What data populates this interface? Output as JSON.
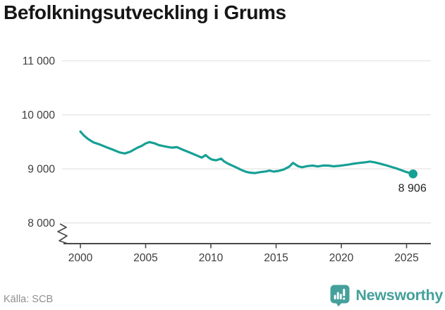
{
  "title": "Befolkningsutveckling i Grums",
  "source": "Källa: SCB",
  "brand": {
    "name": "Newsworthy"
  },
  "colors": {
    "line": "#17A095",
    "grid": "#E4E4E4",
    "axis": "#4A4A4A",
    "axis_text": "#3C3C3C",
    "title_text": "#161616",
    "source_text": "#8F8F8F",
    "annotation_text": "#1F1F1F",
    "brand_teal": "#44A09B"
  },
  "chart_data": {
    "type": "line",
    "title": "Befolkningsutveckling i Grums",
    "xlabel": "",
    "ylabel": "",
    "grid": "horizontal",
    "legend": "none",
    "axis_break_at_bottom": true,
    "x_ticks": [
      2000,
      2005,
      2010,
      2015,
      2020,
      2025
    ],
    "y_ticks": [
      8000,
      9000,
      10000,
      11000
    ],
    "y_tick_labels": [
      "8 000",
      "9 000",
      "10 000",
      "11 000"
    ],
    "xlim": [
      1998.6,
      2027.3
    ],
    "ylim": [
      8000,
      11000
    ],
    "series": [
      {
        "name": "Befolkning i Grums",
        "end_label": "8 906",
        "end_value": 8906,
        "points": [
          [
            2000.0,
            9690
          ],
          [
            2000.3,
            9610
          ],
          [
            2000.6,
            9550
          ],
          [
            2001.0,
            9490
          ],
          [
            2001.5,
            9450
          ],
          [
            2002.0,
            9400
          ],
          [
            2002.5,
            9355
          ],
          [
            2003.0,
            9305
          ],
          [
            2003.4,
            9285
          ],
          [
            2003.8,
            9315
          ],
          [
            2004.1,
            9355
          ],
          [
            2004.4,
            9395
          ],
          [
            2004.7,
            9425
          ],
          [
            2005.0,
            9470
          ],
          [
            2005.3,
            9495
          ],
          [
            2005.7,
            9470
          ],
          [
            2006.0,
            9440
          ],
          [
            2006.5,
            9415
          ],
          [
            2007.0,
            9392
          ],
          [
            2007.4,
            9402
          ],
          [
            2007.8,
            9360
          ],
          [
            2008.1,
            9330
          ],
          [
            2008.5,
            9290
          ],
          [
            2009.0,
            9240
          ],
          [
            2009.3,
            9210
          ],
          [
            2009.6,
            9255
          ],
          [
            2009.9,
            9195
          ],
          [
            2010.1,
            9170
          ],
          [
            2010.4,
            9158
          ],
          [
            2010.8,
            9188
          ],
          [
            2011.0,
            9140
          ],
          [
            2011.3,
            9098
          ],
          [
            2011.6,
            9065
          ],
          [
            2012.0,
            9020
          ],
          [
            2012.3,
            8985
          ],
          [
            2012.7,
            8945
          ],
          [
            2013.0,
            8930
          ],
          [
            2013.4,
            8922
          ],
          [
            2013.8,
            8940
          ],
          [
            2014.2,
            8952
          ],
          [
            2014.5,
            8968
          ],
          [
            2014.8,
            8950
          ],
          [
            2015.2,
            8962
          ],
          [
            2015.6,
            8990
          ],
          [
            2016.0,
            9040
          ],
          [
            2016.3,
            9110
          ],
          [
            2016.7,
            9048
          ],
          [
            2017.0,
            9030
          ],
          [
            2017.4,
            9052
          ],
          [
            2017.8,
            9060
          ],
          [
            2018.2,
            9045
          ],
          [
            2018.6,
            9062
          ],
          [
            2019.0,
            9060
          ],
          [
            2019.4,
            9048
          ],
          [
            2019.8,
            9055
          ],
          [
            2020.2,
            9068
          ],
          [
            2020.6,
            9082
          ],
          [
            2021.0,
            9098
          ],
          [
            2021.4,
            9110
          ],
          [
            2021.8,
            9120
          ],
          [
            2022.2,
            9135
          ],
          [
            2022.6,
            9118
          ],
          [
            2023.0,
            9095
          ],
          [
            2023.4,
            9068
          ],
          [
            2023.8,
            9040
          ],
          [
            2024.2,
            9010
          ],
          [
            2024.6,
            8975
          ],
          [
            2025.0,
            8940
          ],
          [
            2025.5,
            8906
          ]
        ]
      }
    ]
  }
}
